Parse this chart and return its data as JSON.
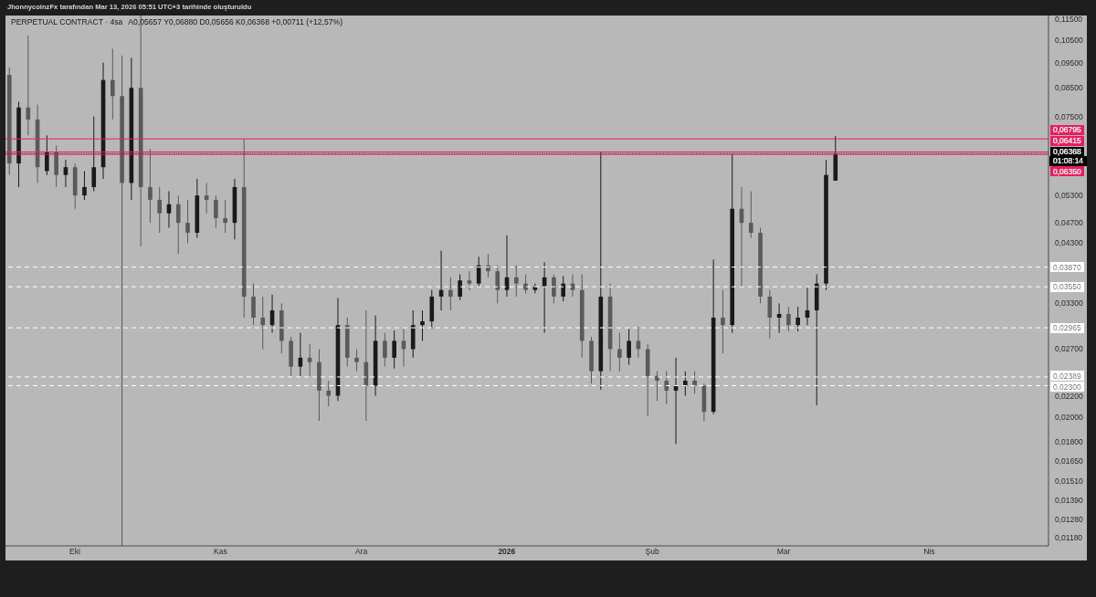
{
  "chart_data": {
    "type": "candlestick",
    "title": "PERPETUAL CONTRACT · 4sa",
    "annotations": [
      "JhonnycoinzFx tarafından Mar 13, 2026 05:51 UTC+3 tarihinde oluşturuldu",
      "A0,05657 Y0,06880 D0,05656 K0,06368 +0,00711 (+12,57%)",
      "01:08:14"
    ],
    "x": [
      "2025-09-17",
      "2025-09-19",
      "2025-09-21",
      "2025-09-23",
      "2025-09-25",
      "2025-09-27",
      "2025-09-29",
      "2025-10-01",
      "2025-10-03",
      "2025-10-05",
      "2025-10-07",
      "2025-10-09",
      "2025-10-11",
      "2025-10-13",
      "2025-10-15",
      "2025-10-17",
      "2025-10-19",
      "2025-10-21",
      "2025-10-23",
      "2025-10-25",
      "2025-10-27",
      "2025-10-29",
      "2025-10-31",
      "2025-11-02",
      "2025-11-04",
      "2025-11-06",
      "2025-11-08",
      "2025-11-10",
      "2025-11-12",
      "2025-11-14",
      "2025-11-16",
      "2025-11-18",
      "2025-11-20",
      "2025-11-22",
      "2025-11-24",
      "2025-11-26",
      "2025-11-28",
      "2025-11-30",
      "2025-12-02",
      "2025-12-04",
      "2025-12-06",
      "2025-12-08",
      "2025-12-10",
      "2025-12-12",
      "2025-12-14",
      "2025-12-16",
      "2025-12-18",
      "2025-12-20",
      "2025-12-22",
      "2025-12-24",
      "2025-12-26",
      "2025-12-28",
      "2025-12-30",
      "2026-01-01",
      "2026-01-03",
      "2026-01-05",
      "2026-01-07",
      "2026-01-09",
      "2026-01-11",
      "2026-01-13",
      "2026-01-15",
      "2026-01-17",
      "2026-01-19",
      "2026-01-21",
      "2026-01-23",
      "2026-01-25",
      "2026-01-27",
      "2026-01-29",
      "2026-01-31",
      "2026-02-02",
      "2026-02-04",
      "2026-02-06",
      "2026-02-08",
      "2026-02-10",
      "2026-02-12",
      "2026-02-14",
      "2026-02-16",
      "2026-02-18",
      "2026-02-20",
      "2026-02-22",
      "2026-02-24",
      "2026-02-26",
      "2026-02-28",
      "2026-03-02",
      "2026-03-04",
      "2026-03-06",
      "2026-03-08",
      "2026-03-10",
      "2026-03-12"
    ],
    "ohlc": [
      [
        0.09,
        0.093,
        0.058,
        0.061
      ],
      [
        0.061,
        0.08,
        0.055,
        0.078
      ],
      [
        0.078,
        0.107,
        0.069,
        0.074
      ],
      [
        0.074,
        0.079,
        0.056,
        0.06
      ],
      [
        0.059,
        0.069,
        0.058,
        0.064
      ],
      [
        0.064,
        0.066,
        0.055,
        0.058
      ],
      [
        0.058,
        0.062,
        0.055,
        0.06
      ],
      [
        0.06,
        0.061,
        0.05,
        0.053
      ],
      [
        0.053,
        0.059,
        0.052,
        0.055
      ],
      [
        0.055,
        0.075,
        0.054,
        0.06
      ],
      [
        0.06,
        0.095,
        0.057,
        0.088
      ],
      [
        0.088,
        0.101,
        0.074,
        0.082
      ],
      [
        0.082,
        0.098,
        0.01138,
        0.056
      ],
      [
        0.056,
        0.097,
        0.052,
        0.085
      ],
      [
        0.085,
        0.1168,
        0.0424,
        0.055
      ],
      [
        0.055,
        0.065,
        0.047,
        0.052
      ],
      [
        0.052,
        0.055,
        0.045,
        0.049
      ],
      [
        0.049,
        0.054,
        0.046,
        0.051
      ],
      [
        0.051,
        0.053,
        0.041,
        0.047
      ],
      [
        0.047,
        0.052,
        0.043,
        0.045
      ],
      [
        0.045,
        0.057,
        0.044,
        0.053
      ],
      [
        0.053,
        0.056,
        0.049,
        0.052
      ],
      [
        0.052,
        0.053,
        0.046,
        0.048
      ],
      [
        0.048,
        0.052,
        0.045,
        0.047
      ],
      [
        0.047,
        0.057,
        0.0437,
        0.055
      ],
      [
        0.055,
        0.06795,
        0.031,
        0.034
      ],
      [
        0.034,
        0.036,
        0.03,
        0.031
      ],
      [
        0.031,
        0.034,
        0.027,
        0.03
      ],
      [
        0.03,
        0.0343,
        0.029,
        0.032
      ],
      [
        0.032,
        0.033,
        0.0265,
        0.028
      ],
      [
        0.028,
        0.0285,
        0.024,
        0.025
      ],
      [
        0.025,
        0.029,
        0.024,
        0.026
      ],
      [
        0.026,
        0.0276,
        0.024,
        0.0255
      ],
      [
        0.0255,
        0.027,
        0.0197,
        0.0225
      ],
      [
        0.0225,
        0.0235,
        0.021,
        0.022
      ],
      [
        0.022,
        0.0338,
        0.0215,
        0.03
      ],
      [
        0.03,
        0.031,
        0.025,
        0.026
      ],
      [
        0.026,
        0.027,
        0.0245,
        0.0255
      ],
      [
        0.0255,
        0.032,
        0.0197,
        0.023
      ],
      [
        0.023,
        0.0313,
        0.022,
        0.028
      ],
      [
        0.028,
        0.029,
        0.025,
        0.026
      ],
      [
        0.026,
        0.0293,
        0.0248,
        0.028
      ],
      [
        0.028,
        0.0295,
        0.025,
        0.027
      ],
      [
        0.027,
        0.032,
        0.026,
        0.03
      ],
      [
        0.03,
        0.032,
        0.028,
        0.0305
      ],
      [
        0.0305,
        0.035,
        0.0295,
        0.034
      ],
      [
        0.034,
        0.0416,
        0.032,
        0.035
      ],
      [
        0.035,
        0.037,
        0.032,
        0.034
      ],
      [
        0.034,
        0.0375,
        0.0335,
        0.0365
      ],
      [
        0.0365,
        0.038,
        0.035,
        0.036
      ],
      [
        0.036,
        0.0405,
        0.0355,
        0.039
      ],
      [
        0.039,
        0.041,
        0.037,
        0.038
      ],
      [
        0.038,
        0.039,
        0.033,
        0.035
      ],
      [
        0.035,
        0.0445,
        0.034,
        0.037
      ],
      [
        0.037,
        0.039,
        0.034,
        0.036
      ],
      [
        0.036,
        0.0375,
        0.0345,
        0.035
      ],
      [
        0.035,
        0.036,
        0.0345,
        0.0355
      ],
      [
        0.0355,
        0.0395,
        0.029,
        0.037
      ],
      [
        0.037,
        0.0375,
        0.033,
        0.034
      ],
      [
        0.034,
        0.0372,
        0.0333,
        0.036
      ],
      [
        0.036,
        0.0375,
        0.034,
        0.035
      ],
      [
        0.035,
        0.0375,
        0.026,
        0.028
      ],
      [
        0.028,
        0.0285,
        0.0232,
        0.0245
      ],
      [
        0.0245,
        0.06415,
        0.0226,
        0.034
      ],
      [
        0.034,
        0.036,
        0.0245,
        0.027
      ],
      [
        0.027,
        0.029,
        0.0245,
        0.026
      ],
      [
        0.026,
        0.0295,
        0.0252,
        0.028
      ],
      [
        0.028,
        0.0298,
        0.026,
        0.027
      ],
      [
        0.027,
        0.0276,
        0.0201,
        0.024
      ],
      [
        0.024,
        0.0245,
        0.0215,
        0.0235
      ],
      [
        0.0235,
        0.0245,
        0.0212,
        0.0225
      ],
      [
        0.0225,
        0.026,
        0.0178,
        0.023
      ],
      [
        0.023,
        0.0245,
        0.022,
        0.0235
      ],
      [
        0.0235,
        0.0245,
        0.0222,
        0.023
      ],
      [
        0.023,
        0.0232,
        0.0197,
        0.0205
      ],
      [
        0.0205,
        0.04,
        0.0203,
        0.031
      ],
      [
        0.031,
        0.035,
        0.0265,
        0.03
      ],
      [
        0.03,
        0.0635,
        0.029,
        0.05
      ],
      [
        0.05,
        0.055,
        0.0355,
        0.047
      ],
      [
        0.047,
        0.054,
        0.044,
        0.045
      ],
      [
        0.045,
        0.046,
        0.033,
        0.034
      ],
      [
        0.034,
        0.035,
        0.0283,
        0.031
      ],
      [
        0.031,
        0.033,
        0.029,
        0.0315
      ],
      [
        0.0315,
        0.0325,
        0.0292,
        0.03
      ],
      [
        0.03,
        0.0325,
        0.0292,
        0.031
      ],
      [
        0.031,
        0.0355,
        0.03,
        0.032
      ],
      [
        0.032,
        0.0375,
        0.0211,
        0.036
      ],
      [
        0.036,
        0.062,
        0.035,
        0.058
      ],
      [
        0.05657,
        0.0688,
        0.05656,
        0.06368
      ]
    ],
    "colors": [
      "#5a5a5a",
      "#1a1a1a",
      "#5a5a5a",
      "#5a5a5a",
      "#1a1a1a",
      "#5a5a5a",
      "#1a1a1a",
      "#5a5a5a",
      "#1a1a1a",
      "#1a1a1a",
      "#1a1a1a",
      "#5a5a5a",
      "#5a5a5a",
      "#1a1a1a",
      "#5a5a5a",
      "#5a5a5a",
      "#5a5a5a",
      "#1a1a1a",
      "#5a5a5a",
      "#5a5a5a",
      "#1a1a1a",
      "#5a5a5a",
      "#5a5a5a",
      "#5a5a5a",
      "#1a1a1a",
      "#5a5a5a",
      "#5a5a5a",
      "#5a5a5a",
      "#1a1a1a",
      "#5a5a5a",
      "#5a5a5a",
      "#1a1a1a",
      "#5a5a5a",
      "#5a5a5a",
      "#5a5a5a",
      "#1a1a1a",
      "#5a5a5a",
      "#5a5a5a",
      "#5a5a5a",
      "#1a1a1a",
      "#5a5a5a",
      "#1a1a1a",
      "#5a5a5a",
      "#1a1a1a",
      "#1a1a1a",
      "#1a1a1a",
      "#1a1a1a",
      "#5a5a5a",
      "#1a1a1a",
      "#5a5a5a",
      "#1a1a1a",
      "#5a5a5a",
      "#5a5a5a",
      "#1a1a1a",
      "#5a5a5a",
      "#5a5a5a",
      "#1a1a1a",
      "#1a1a1a",
      "#5a5a5a",
      "#1a1a1a",
      "#5a5a5a",
      "#5a5a5a",
      "#5a5a5a",
      "#1a1a1a",
      "#5a5a5a",
      "#5a5a5a",
      "#1a1a1a",
      "#5a5a5a",
      "#5a5a5a",
      "#5a5a5a",
      "#5a5a5a",
      "#1a1a1a",
      "#1a1a1a",
      "#5a5a5a",
      "#5a5a5a",
      "#1a1a1a",
      "#5a5a5a",
      "#1a1a1a",
      "#5a5a5a",
      "#5a5a5a",
      "#5a5a5a",
      "#5a5a5a",
      "#1a1a1a",
      "#5a5a5a",
      "#1a1a1a",
      "#1a1a1a",
      "#1a1a1a",
      "#1a1a1a",
      "#1a1a1a"
    ],
    "xlim": [
      "2025-09-16T05:00",
      "2026-04-26T10:00"
    ],
    "xticks": [
      {
        "value": "2025-10-01",
        "label": "Eki"
      },
      {
        "value": "2025-11-01",
        "label": "Kas"
      },
      {
        "value": "2025-12-01",
        "label": "Ara"
      },
      {
        "value": "2026-01-01",
        "label": "2026"
      },
      {
        "value": "2026-02-01",
        "label": "Şub"
      },
      {
        "value": "2026-03-01",
        "label": "Mar"
      },
      {
        "value": "2026-04-01",
        "label": "Nis"
      }
    ],
    "ylim": [
      0.01138,
      0.1168
    ],
    "yticks": [
      {
        "value": 0.115,
        "label": "0,11500"
      },
      {
        "value": 0.105,
        "label": "0,10500"
      },
      {
        "value": 0.095,
        "label": "0,09500"
      },
      {
        "value": 0.085,
        "label": "0,08500"
      },
      {
        "value": 0.075,
        "label": "0,07500"
      },
      {
        "value": 0.053,
        "label": "0,05300"
      },
      {
        "value": 0.047,
        "label": "0,04700"
      },
      {
        "value": 0.043,
        "label": "0,04300"
      },
      {
        "value": 0.033,
        "label": "0,03300"
      },
      {
        "value": 0.027,
        "label": "0,02700"
      },
      {
        "value": 0.022,
        "label": "0,02200"
      },
      {
        "value": 0.02,
        "label": "0,02000"
      },
      {
        "value": 0.018,
        "label": "0,01800"
      },
      {
        "value": 0.0165,
        "label": "0,01650"
      },
      {
        "value": 0.0151,
        "label": "0,01510"
      },
      {
        "value": 0.0139,
        "label": "0,01390"
      },
      {
        "value": 0.0128,
        "label": "0,01280"
      },
      {
        "value": 0.0118,
        "label": "0,01180"
      }
    ],
    "log": true,
    "ref_lines": [
      {
        "axis": "y",
        "value": 0.06795,
        "label": "0,06795",
        "color": "#e91e63",
        "line_style": "solid"
      },
      {
        "axis": "y",
        "value": 0.06415,
        "label": "0,06415",
        "color": "#e91e63",
        "line_style": "solid"
      },
      {
        "axis": "y",
        "value": 0.06368,
        "label": "0,06368",
        "color": "#000000",
        "line_style": "dotted"
      },
      {
        "axis": "y",
        "value": 0.0635,
        "label": "0,06350",
        "color": "#e91e63",
        "line_style": "solid"
      },
      {
        "axis": "y",
        "value": 0.0387,
        "label": "0,03870",
        "color": "#ffffff",
        "line_style": "dashed"
      },
      {
        "axis": "y",
        "value": 0.0355,
        "label": "0,03550",
        "color": "#ffffff",
        "line_style": "dashed"
      },
      {
        "axis": "y",
        "value": 0.02965,
        "label": "0,02965",
        "color": "#ffffff",
        "line_style": "dashed"
      },
      {
        "axis": "y",
        "value": 0.02389,
        "label": "0,02389",
        "color": "#ffffff",
        "line_style": "dashed"
      },
      {
        "axis": "y",
        "value": 0.023,
        "label": "0,02300",
        "color": "#ffffff",
        "line_style": "dashed"
      }
    ]
  }
}
